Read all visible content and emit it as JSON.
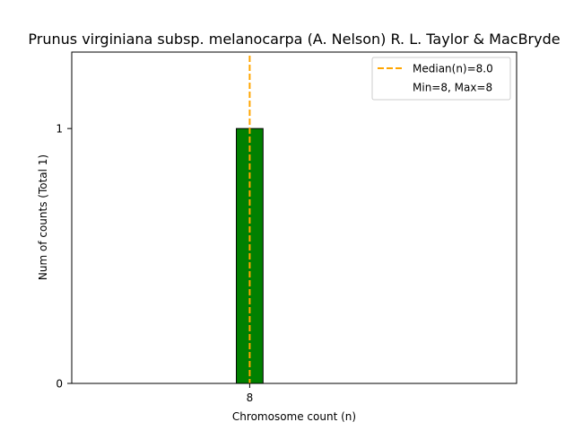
{
  "chart_data": {
    "type": "bar",
    "title": "Prunus virginiana subsp. melanocarpa (A. Nelson) R. L. Taylor & MacBryde",
    "xlabel": "Chromosome count (n)",
    "ylabel": "Num of counts     (Total 1)",
    "categories": [
      "8"
    ],
    "values": [
      1
    ],
    "xlim": [
      6.0,
      11.0
    ],
    "ylim": [
      0,
      1.3
    ],
    "yticks": [
      0,
      1
    ],
    "xticks": [
      8
    ],
    "bar_width": 0.3,
    "bar_color": "#008000",
    "bar_edge_color": "#000000",
    "median": 8.0,
    "median_color": "#FFA500",
    "legend_placement": "top-right",
    "legend": {
      "median_label": "Median(n)=8.0",
      "range_label": "Min=8, Max=8"
    }
  }
}
